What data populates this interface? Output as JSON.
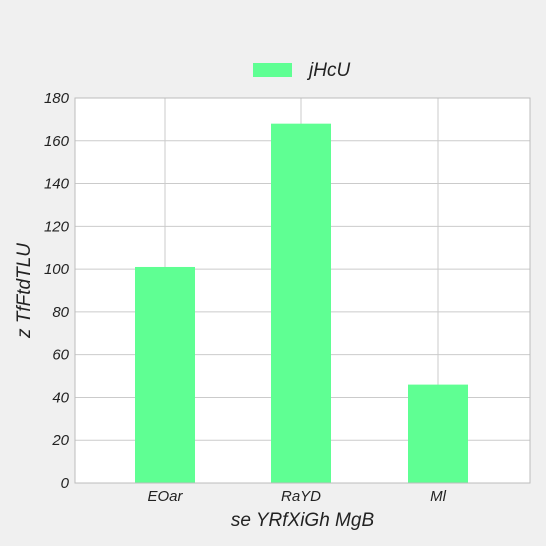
{
  "chart_data": {
    "type": "bar",
    "categories": [
      "EOar",
      "RaYD",
      "Ml"
    ],
    "series": [
      {
        "name": "jHcU",
        "values": [
          101,
          168,
          46
        ]
      }
    ],
    "xlabel": "se YRfXiGh MgB",
    "ylabel": "z TfFtdTLU",
    "ylim": [
      0,
      180
    ],
    "yticks": [
      0,
      20,
      40,
      60,
      80,
      100,
      120,
      140,
      160,
      180
    ],
    "grid": true,
    "legend_position": "top-center",
    "colors": {
      "bar": "#5fff93",
      "plot_background": "#ffffff",
      "page_background": "#f0f0f0",
      "grid": "#cbcbcb",
      "frame": "#bcbcbc"
    }
  }
}
